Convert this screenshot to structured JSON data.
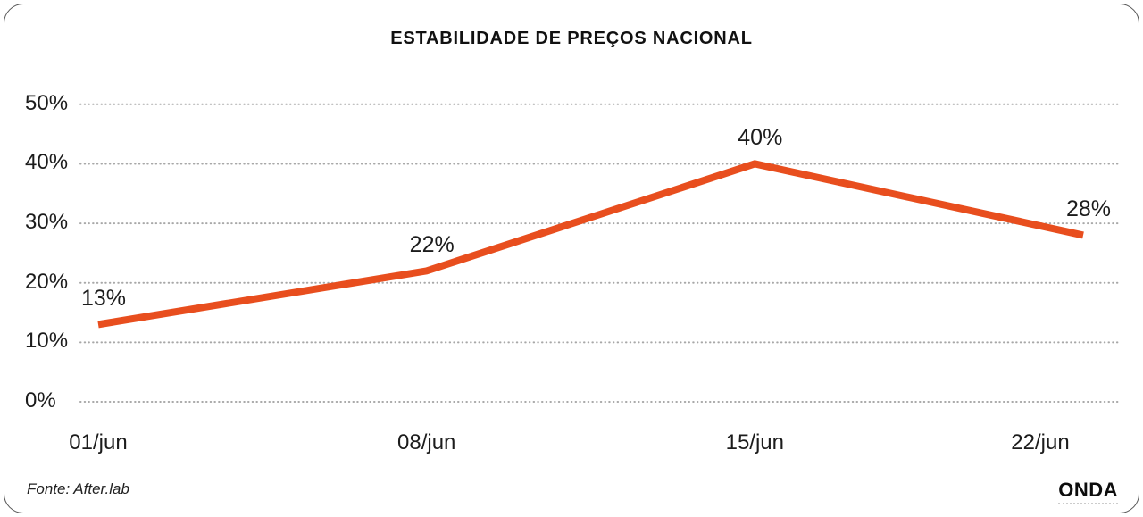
{
  "title": "ESTABILIDADE DE PREÇOS NACIONAL",
  "source": "Fonte: After.lab",
  "brand": "ONDA",
  "colors": {
    "line": "#E84E1E",
    "gridline": "#a8a8a8",
    "text": "#1c1c1c",
    "frame_border": "#555555"
  },
  "chart_data": {
    "type": "line",
    "title": "ESTABILIDADE DE PREÇOS NACIONAL",
    "categories": [
      "01/jun",
      "08/jun",
      "15/jun",
      "22/jun"
    ],
    "series": [
      {
        "name": "Estabilidade de preços nacional",
        "values": [
          13,
          22,
          40,
          28
        ]
      }
    ],
    "data_labels": [
      "13%",
      "22%",
      "40%",
      "28%"
    ],
    "xlabel": "",
    "ylabel": "",
    "y_ticks": [
      0,
      10,
      20,
      30,
      40,
      50
    ],
    "y_tick_labels": [
      "0%",
      "10%",
      "20%",
      "30%",
      "40%",
      "50%"
    ],
    "ylim": [
      0,
      50
    ],
    "grid": "horizontal-dotted",
    "legend_position": "none",
    "line_color": "#E84E1E",
    "source": "Fonte: After.lab",
    "brand": "ONDA"
  }
}
